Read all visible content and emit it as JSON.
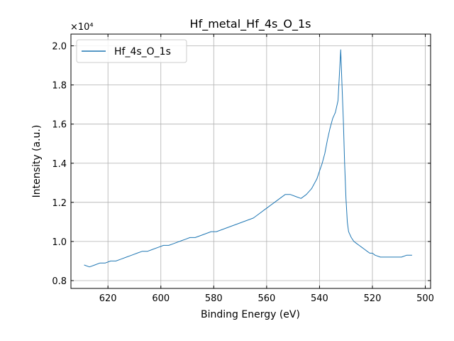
{
  "chart_data": {
    "type": "line",
    "title": "Hf_metal_Hf_4s_O_1s",
    "xlabel": "Binding Energy (eV)",
    "ylabel": "Intensity (a.u.)",
    "y_multiplier_label": "×10⁴",
    "xlim": [
      634,
      498
    ],
    "x_reversed": true,
    "ylim": [
      0.76,
      2.06
    ],
    "y_units": "×10⁴ counts",
    "x_ticks": [
      620,
      600,
      580,
      560,
      540,
      520,
      500
    ],
    "y_ticks": [
      0.8,
      1.0,
      1.2,
      1.4,
      1.6,
      1.8,
      2.0
    ],
    "x_tick_labels": [
      "620",
      "600",
      "580",
      "560",
      "540",
      "520",
      "500"
    ],
    "y_tick_labels": [
      "0.8",
      "1.0",
      "1.2",
      "1.4",
      "1.6",
      "1.8",
      "2.0"
    ],
    "grid": true,
    "legend_position": "top-left",
    "series": [
      {
        "name": "Hf_4s_O_1s",
        "color": "#1f77b4",
        "x": [
          629,
          627,
          625,
          623,
          621,
          619,
          617,
          615,
          613,
          611,
          609,
          607,
          605,
          603,
          601,
          599,
          597,
          595,
          593,
          591,
          589,
          587,
          585,
          583,
          581,
          579,
          577,
          575,
          573,
          571,
          569,
          567,
          565,
          563,
          561,
          559,
          557,
          555,
          553,
          551,
          549,
          547,
          545,
          543,
          541,
          540,
          539,
          538,
          537,
          536,
          535,
          534,
          533,
          532.5,
          532,
          531.5,
          531,
          530.5,
          530,
          529.5,
          529,
          528,
          527,
          526,
          525,
          524,
          523,
          522,
          521,
          520,
          519,
          517,
          515,
          513,
          511,
          509,
          507,
          505
        ],
        "y": [
          0.88,
          0.87,
          0.88,
          0.89,
          0.89,
          0.9,
          0.9,
          0.91,
          0.92,
          0.93,
          0.94,
          0.95,
          0.95,
          0.96,
          0.97,
          0.98,
          0.98,
          0.99,
          1.0,
          1.01,
          1.02,
          1.02,
          1.03,
          1.04,
          1.05,
          1.05,
          1.06,
          1.07,
          1.08,
          1.09,
          1.1,
          1.11,
          1.12,
          1.14,
          1.16,
          1.18,
          1.2,
          1.22,
          1.24,
          1.24,
          1.23,
          1.22,
          1.24,
          1.27,
          1.32,
          1.36,
          1.4,
          1.45,
          1.52,
          1.58,
          1.63,
          1.66,
          1.72,
          1.85,
          1.98,
          1.8,
          1.62,
          1.4,
          1.22,
          1.1,
          1.05,
          1.02,
          1.0,
          0.99,
          0.98,
          0.97,
          0.96,
          0.95,
          0.94,
          0.94,
          0.93,
          0.92,
          0.92,
          0.92,
          0.92,
          0.92,
          0.93,
          0.93
        ]
      }
    ]
  }
}
